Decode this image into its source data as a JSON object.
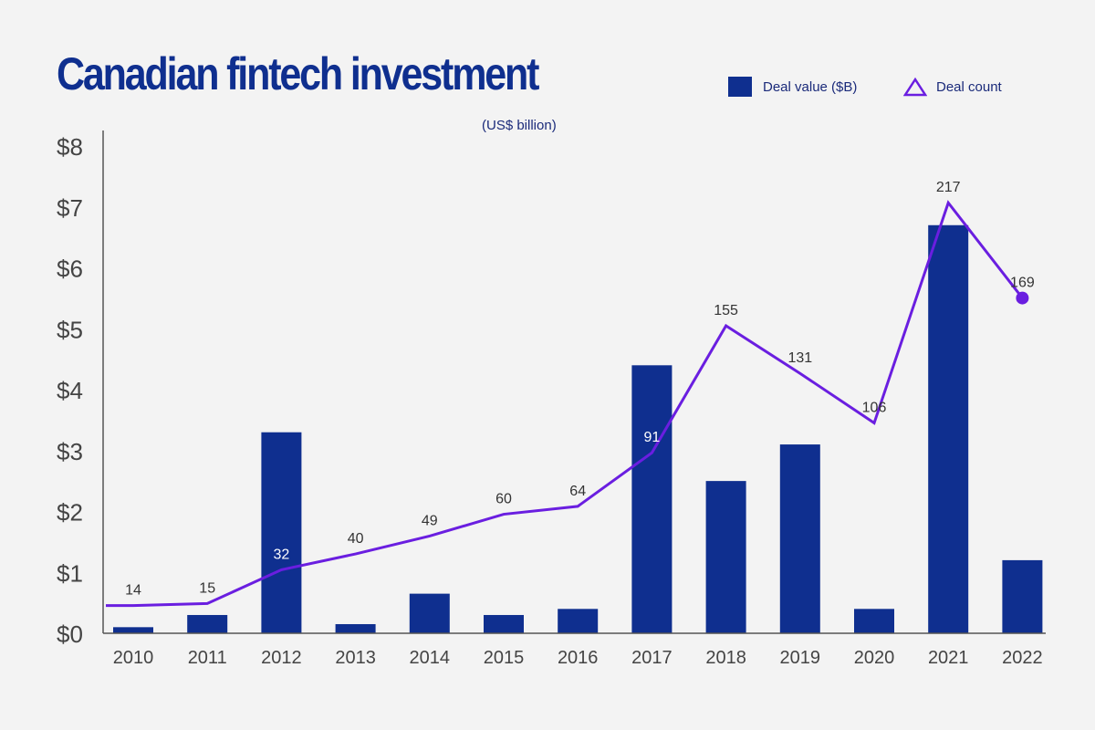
{
  "title": "Canadian fintech investment",
  "subtitle": "(US$ billion)",
  "legend": {
    "bar_label": "Deal value ($B)",
    "line_label": "Deal count"
  },
  "colors": {
    "bar": "#0f2f8f",
    "line": "#6a1ee0",
    "axis_text": "#444444",
    "background": "#f3f3f3"
  },
  "chart_data": {
    "type": "bar",
    "title": "Canadian fintech investment",
    "subtitle": "(US$ billion)",
    "categories": [
      "2010",
      "2011",
      "2012",
      "2013",
      "2014",
      "2015",
      "2016",
      "2017",
      "2018",
      "2019",
      "2020",
      "2021",
      "2022"
    ],
    "series": [
      {
        "name": "Deal value ($B)",
        "type": "bar",
        "values": [
          0.1,
          0.3,
          3.3,
          0.15,
          0.65,
          0.3,
          0.4,
          4.4,
          2.5,
          3.1,
          0.4,
          6.7,
          1.2
        ]
      },
      {
        "name": "Deal count",
        "type": "line",
        "values": [
          14,
          15,
          32,
          40,
          49,
          60,
          64,
          91,
          155,
          131,
          106,
          217,
          169
        ]
      }
    ],
    "y_ticks": [
      "$0",
      "$1",
      "$2",
      "$3",
      "$4",
      "$5",
      "$6",
      "$7",
      "$8"
    ],
    "ylim": [
      0,
      8
    ],
    "line_point_labels": [
      "14",
      "15",
      "32",
      "40",
      "49",
      "60",
      "64",
      "91",
      "155",
      "131",
      "106",
      "217",
      "169"
    ],
    "grid": false,
    "legend_position": "top-right"
  }
}
